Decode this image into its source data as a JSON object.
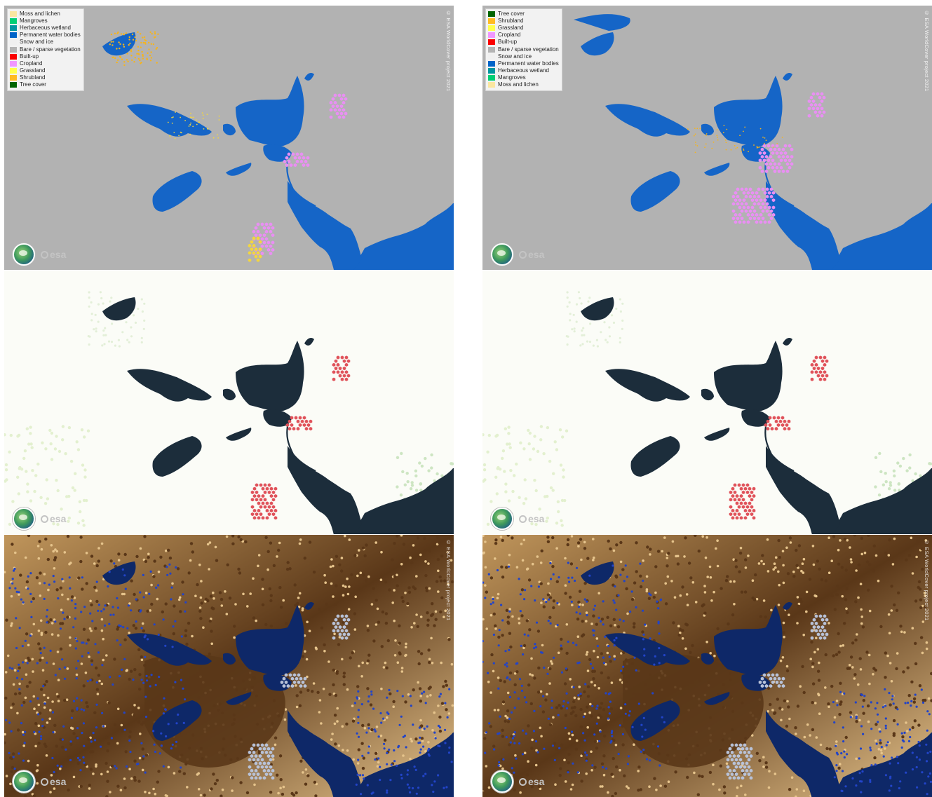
{
  "panels": [
    {
      "id": "landcover-2020",
      "type": "landcover",
      "legend": [
        {
          "label": "Moss and lichen",
          "color": "#fae6a0"
        },
        {
          "label": "Mangroves",
          "color": "#00cf75"
        },
        {
          "label": "Herbaceous wetland",
          "color": "#0096a0"
        },
        {
          "label": "Permanent water bodies",
          "color": "#0064c8"
        },
        {
          "label": "Snow and ice",
          "color": "#f0f0f0"
        },
        {
          "label": "Bare / sparse vegetation",
          "color": "#b4b4b4"
        },
        {
          "label": "Built-up",
          "color": "#fa0000"
        },
        {
          "label": "Cropland",
          "color": "#f096ff"
        },
        {
          "label": "Grassland",
          "color": "#ffff4c"
        },
        {
          "label": "Shrubland",
          "color": "#ffbb22"
        },
        {
          "label": "Tree cover",
          "color": "#006400"
        }
      ],
      "copyright": "© ESA WorldCover project 2021",
      "logos": {
        "worldcover": "worldcover-globe-logo",
        "esa": "esa"
      }
    },
    {
      "id": "landcover-2021",
      "type": "landcover",
      "legend": [
        {
          "label": "Tree cover",
          "color": "#006400"
        },
        {
          "label": "Shrubland",
          "color": "#ffbb22"
        },
        {
          "label": "Grassland",
          "color": "#ffff4c"
        },
        {
          "label": "Cropland",
          "color": "#f096ff"
        },
        {
          "label": "Built-up",
          "color": "#fa0000"
        },
        {
          "label": "Bare / sparse vegetation",
          "color": "#b4b4b4"
        },
        {
          "label": "Snow and ice",
          "color": "#f0f0f0"
        },
        {
          "label": "Permanent water bodies",
          "color": "#0064c8"
        },
        {
          "label": "Herbaceous wetland",
          "color": "#0096a0"
        },
        {
          "label": "Mangroves",
          "color": "#00cf75"
        },
        {
          "label": "Moss and lichen",
          "color": "#fae6a0"
        }
      ],
      "copyright": "© ESA WorldCover project 2021",
      "logos": {
        "worldcover": "worldcover-globe-logo",
        "esa": "esa"
      }
    },
    {
      "id": "s2-composite-2020",
      "type": "s2",
      "copyright": "",
      "logos": {
        "worldcover": "worldcover-globe-logo",
        "esa": "esa"
      }
    },
    {
      "id": "s2-composite-2021",
      "type": "s2",
      "copyright": "",
      "logos": {
        "worldcover": "worldcover-globe-logo",
        "esa": "esa"
      }
    },
    {
      "id": "s1-composite-2020",
      "type": "s1",
      "copyright": "© ESA WorldCover project 2021",
      "logos": {
        "worldcover": "worldcover-globe-logo",
        "esa": "esa"
      }
    },
    {
      "id": "s1-composite-2021",
      "type": "s1",
      "copyright": "© ESA WorldCover project 2021",
      "logos": {
        "worldcover": "worldcover-globe-logo",
        "esa": "esa"
      }
    }
  ],
  "colors": {
    "bare": "#b2b2b2",
    "water": "#1565c7",
    "cropland": "#e98ff3",
    "grassland": "#f3d63f",
    "shrubland": "#f6b41c",
    "builtup": "#e0141e",
    "s2_background": "#fbfcf7",
    "s2_water": "#1c2d3b",
    "s2_fields": "#e0525a",
    "s1_dark": "#5a3718",
    "s1_tan": "#c0965c",
    "s1_light": "#e6c48c",
    "s1_water": "#0e2868",
    "s1_blue": "#2244c8"
  }
}
